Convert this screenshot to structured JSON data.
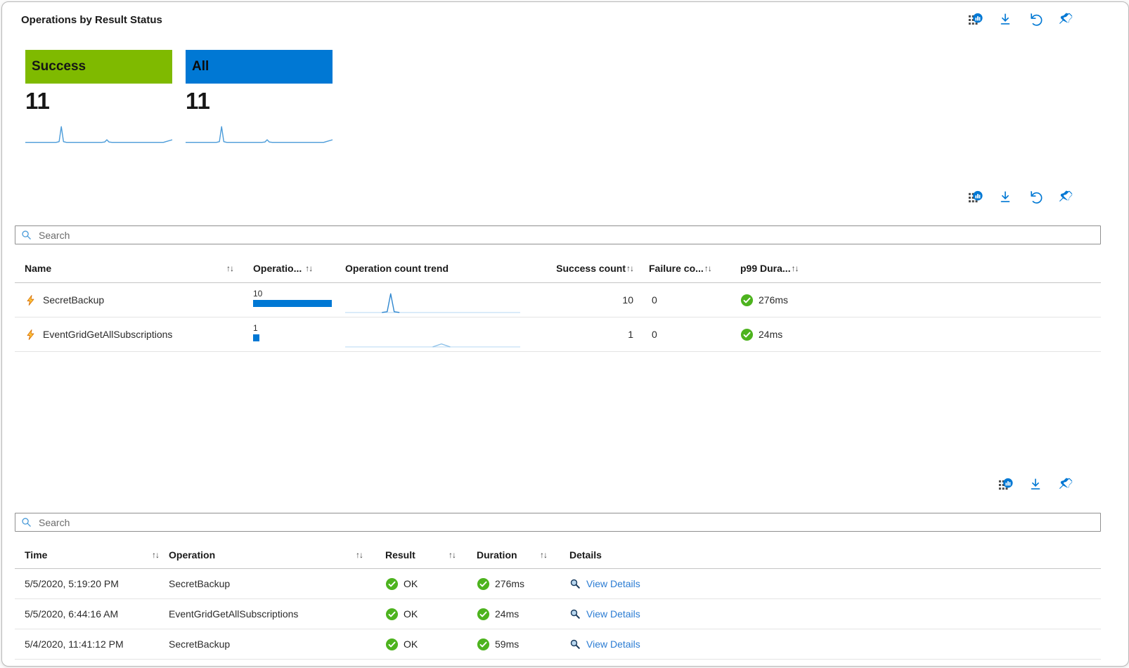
{
  "header": {
    "title": "Operations by Result Status"
  },
  "toolbar": {
    "icons_top": [
      "chart-visualization",
      "download",
      "undo",
      "pin"
    ],
    "icons_middle": [
      "chart-visualization",
      "download",
      "undo",
      "pin"
    ],
    "icons_bottom": [
      "chart-visualization",
      "download",
      "pin"
    ],
    "sort_glyph": "↑↓"
  },
  "colors": {
    "accent_blue": "#0078d4",
    "tile_green": "#7fba00",
    "check_green": "#4db31e",
    "link_blue": "#2b7cd3",
    "bar_blue": "#0078d4"
  },
  "tiles": [
    {
      "label": "Success",
      "value": "11",
      "color": "#7fba00"
    },
    {
      "label": "All",
      "value": "11",
      "color": "#0078d4"
    }
  ],
  "operations_table": {
    "search_placeholder": "Search",
    "headers": {
      "name": "Name",
      "operation_count": "Operatio...",
      "trend": "Operation count trend",
      "success": "Success count",
      "failure": "Failure co...",
      "p99": "p99 Dura..."
    },
    "rows": [
      {
        "name": "SecretBackup",
        "operation_count": "10",
        "bar_percent": 100,
        "success_count": "10",
        "failure_count": "0",
        "p99_duration": "276ms"
      },
      {
        "name": "EventGridGetAllSubscriptions",
        "operation_count": "1",
        "bar_percent": 8,
        "success_count": "1",
        "failure_count": "0",
        "p99_duration": "24ms"
      }
    ]
  },
  "events_table": {
    "search_placeholder": "Search",
    "headers": {
      "time": "Time",
      "operation": "Operation",
      "result": "Result",
      "duration": "Duration",
      "details": "Details"
    },
    "rows": [
      {
        "time": "5/5/2020, 5:19:20 PM",
        "operation": "SecretBackup",
        "result": "OK",
        "duration": "276ms",
        "details_label": "View Details"
      },
      {
        "time": "5/5/2020, 6:44:16 AM",
        "operation": "EventGridGetAllSubscriptions",
        "result": "OK",
        "duration": "24ms",
        "details_label": "View Details"
      },
      {
        "time": "5/4/2020, 11:41:12 PM",
        "operation": "SecretBackup",
        "result": "OK",
        "duration": "59ms",
        "details_label": "View Details"
      }
    ]
  },
  "chart_data": [
    {
      "type": "line",
      "name": "success-tile-trend",
      "title": "Success operations trend",
      "x_range": [
        0,
        100
      ],
      "y_range": [
        0,
        30
      ],
      "grid": false,
      "series": [
        {
          "name": "Success",
          "color": "#4a9bd9",
          "width": 1.4,
          "points": [
            [
              0,
              26
            ],
            [
              21,
              26
            ],
            [
              23,
              25
            ],
            [
              24.5,
              5
            ],
            [
              26,
              25
            ],
            [
              28,
              26
            ],
            [
              52,
              26
            ],
            [
              54,
              25.5
            ],
            [
              55.5,
              22.5
            ],
            [
              57,
              25.5
            ],
            [
              59,
              26
            ],
            [
              94,
              26
            ],
            [
              100,
              22.5
            ]
          ]
        }
      ]
    },
    {
      "type": "line",
      "name": "all-tile-trend",
      "title": "All operations trend",
      "x_range": [
        0,
        100
      ],
      "y_range": [
        0,
        30
      ],
      "grid": false,
      "series": [
        {
          "name": "All",
          "color": "#4a9bd9",
          "width": 1.4,
          "points": [
            [
              0,
              26
            ],
            [
              21,
              26
            ],
            [
              23,
              25
            ],
            [
              24.5,
              5
            ],
            [
              26,
              25
            ],
            [
              28,
              26
            ],
            [
              52,
              26
            ],
            [
              54,
              25.5
            ],
            [
              55.5,
              22.5
            ],
            [
              57,
              25.5
            ],
            [
              59,
              26
            ],
            [
              94,
              26
            ],
            [
              100,
              22.5
            ]
          ]
        }
      ]
    },
    {
      "type": "line",
      "name": "secretbackup-count-trend",
      "title": "SecretBackup operation count trend",
      "x_range": [
        0,
        100
      ],
      "y_range": [
        0,
        30
      ],
      "grid": false,
      "series": [
        {
          "name": "baseline",
          "color": "#cfe5f7",
          "width": 1.4,
          "points": [
            [
              0,
              28
            ],
            [
              100,
              28
            ]
          ]
        },
        {
          "name": "peak",
          "color": "#2e86cf",
          "width": 1.4,
          "points": [
            [
              21,
              28
            ],
            [
              24,
              27
            ],
            [
              26,
              3
            ],
            [
              28,
              27
            ],
            [
              31,
              28
            ]
          ]
        }
      ]
    },
    {
      "type": "line",
      "name": "eventgrid-count-trend",
      "title": "EventGridGetAllSubscriptions operation count trend",
      "x_range": [
        0,
        100
      ],
      "y_range": [
        0,
        30
      ],
      "grid": false,
      "series": [
        {
          "name": "baseline",
          "color": "#cfe5f7",
          "width": 1.4,
          "points": [
            [
              0,
              28
            ],
            [
              100,
              28
            ]
          ]
        },
        {
          "name": "bump",
          "color": "#8cc0e8",
          "width": 1.4,
          "points": [
            [
              50,
              28
            ],
            [
              55,
              24
            ],
            [
              60,
              28
            ]
          ]
        }
      ]
    }
  ]
}
